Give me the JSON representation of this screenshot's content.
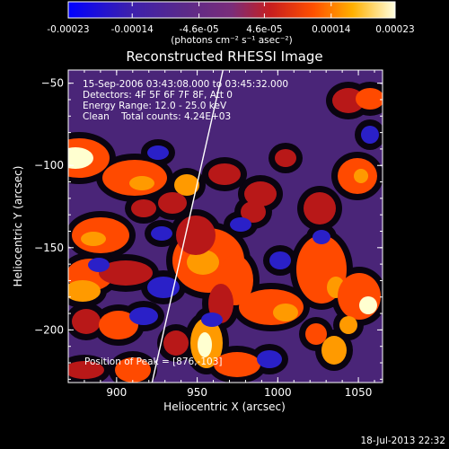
{
  "colorbar": {
    "tick_labels": [
      "-0.00023",
      "-0.00014",
      "-4.6e-05",
      "4.6e-05",
      "0.00014",
      "0.00023"
    ],
    "tick_values": [
      -0.00023,
      -0.00014,
      -4.6e-05,
      4.6e-05,
      0.00014,
      0.00023
    ],
    "range": [
      -0.00023,
      0.00023
    ],
    "unit_label": "(photons cm⁻² s⁻¹ asec⁻²)",
    "colors": [
      "#0000ff",
      "#3a1fb0",
      "#5a2a8a",
      "#7a2d7a",
      "#c81e1e",
      "#ff5000",
      "#ffb000",
      "#ffffe0",
      "#ffffff"
    ]
  },
  "chart_data": {
    "type": "heatmap",
    "title": "Reconstructed RHESSI Image",
    "xlabel": "Heliocentric X (arcsec)",
    "ylabel": "Heliocentric Y (arcsec)",
    "x_ticks": [
      900,
      950,
      1000,
      1050
    ],
    "y_ticks": [
      -50,
      -100,
      -150,
      -200
    ],
    "xlim": [
      870,
      1065
    ],
    "ylim": [
      -232,
      -42
    ],
    "overlay": {
      "time_range": "15-Sep-2006 03:43:08.000 to 03:45:32.000",
      "detectors": "Detectors: 4F 5F 6F 7F 8F, Att 0",
      "energy_range": "Energy Range: 12.0 - 25.0 keV",
      "clean": "Clean    Total counts: 4.24E+03",
      "peak": "Position of Peak = [876,-103]"
    },
    "limb_line": [
      [
        922,
        -232
      ],
      [
        966,
        -42
      ]
    ],
    "peak_position": [
      876,
      -103
    ]
  },
  "footer": {
    "timestamp": "18-Jul-2013 22:32"
  }
}
